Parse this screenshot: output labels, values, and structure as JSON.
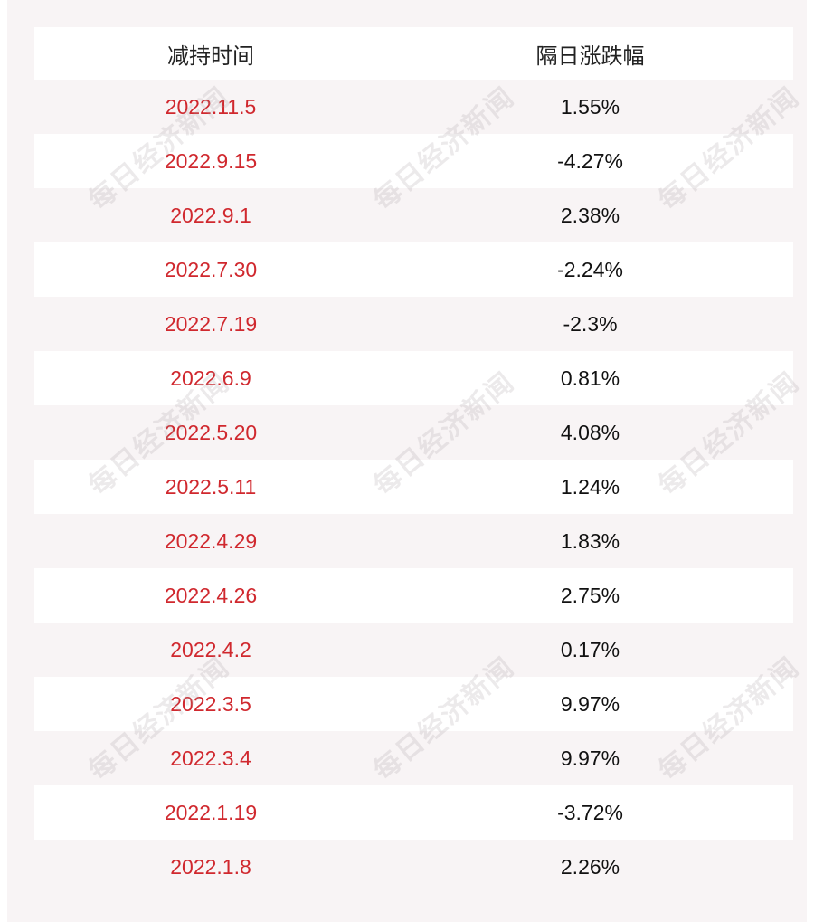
{
  "table": {
    "header": [
      "减持时间",
      "隔日涨跌幅"
    ],
    "rows": [
      [
        "2022.11.5",
        "1.55%"
      ],
      [
        "2022.9.15",
        "-4.27%"
      ],
      [
        "2022.9.1",
        "2.38%"
      ],
      [
        "2022.7.30",
        "-2.24%"
      ],
      [
        "2022.7.19",
        "-2.3%"
      ],
      [
        "2022.6.9",
        "0.81%"
      ],
      [
        "2022.5.20",
        "4.08%"
      ],
      [
        "2022.5.11",
        "1.24%"
      ],
      [
        "2022.4.29",
        "1.83%"
      ],
      [
        "2022.4.26",
        "2.75%"
      ],
      [
        "2022.4.2",
        "0.17%"
      ],
      [
        "2022.3.5",
        "9.97%"
      ],
      [
        "2022.3.4",
        "9.97%"
      ],
      [
        "2022.1.19",
        "-3.72%"
      ],
      [
        "2022.1.8",
        "2.26%"
      ]
    ]
  },
  "watermark": "每日经济新闻"
}
